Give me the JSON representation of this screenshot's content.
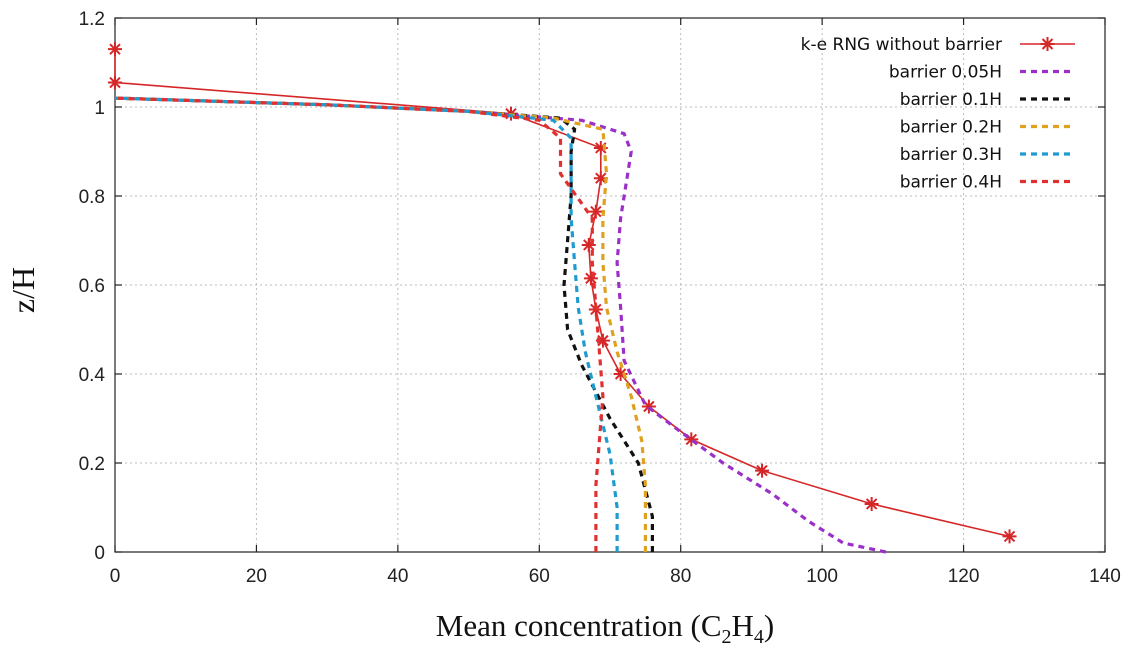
{
  "chart_data": {
    "type": "line",
    "title": "",
    "xlabel": "Mean concentration (C2H4)",
    "xlabel_parts": {
      "pre": "Mean concentration (C",
      "sub1": "2",
      "mid": "H",
      "sub2": "4",
      "post": ")"
    },
    "ylabel": "z/H",
    "xlim": [
      0,
      140
    ],
    "ylim": [
      0,
      1.2
    ],
    "xticks": [
      0,
      20,
      40,
      60,
      80,
      100,
      120,
      140
    ],
    "yticks": [
      0,
      0.2,
      0.4,
      0.6,
      0.8,
      1,
      1.2
    ],
    "xtick_labels": [
      "0",
      "20",
      "40",
      "60",
      "80",
      "100",
      "120",
      "140"
    ],
    "ytick_labels": [
      "0",
      "0.2",
      "0.4",
      "0.6",
      "0.8",
      "1",
      "1.2"
    ],
    "grid": true,
    "legend_position": "top-right",
    "series": [
      {
        "name": "k-e RNG without barrier",
        "color": "#d62728",
        "style": "solid-star",
        "points": [
          [
            126.5,
            0.035
          ],
          [
            107,
            0.108
          ],
          [
            91.5,
            0.183
          ],
          [
            81.5,
            0.253
          ],
          [
            75.5,
            0.327
          ],
          [
            71.5,
            0.4
          ],
          [
            69,
            0.475
          ],
          [
            68,
            0.545
          ],
          [
            67.3,
            0.615
          ],
          [
            67,
            0.69
          ],
          [
            68,
            0.765
          ],
          [
            68.7,
            0.84
          ],
          [
            68.7,
            0.908
          ],
          [
            56,
            0.985
          ],
          [
            0,
            1.055
          ],
          [
            0,
            1.13
          ]
        ]
      },
      {
        "name": "barrier 0.05H",
        "color": "#9a30c8",
        "style": "dashed",
        "points": [
          [
            109,
            0
          ],
          [
            103,
            0.02
          ],
          [
            98,
            0.07
          ],
          [
            93,
            0.13
          ],
          [
            86,
            0.2
          ],
          [
            80,
            0.27
          ],
          [
            75,
            0.33
          ],
          [
            72,
            0.43
          ],
          [
            71.5,
            0.55
          ],
          [
            71,
            0.65
          ],
          [
            71.5,
            0.75
          ],
          [
            72.5,
            0.85
          ],
          [
            73,
            0.9
          ],
          [
            72,
            0.94
          ],
          [
            66,
            0.97
          ],
          [
            50,
            0.99
          ],
          [
            30,
            1.005
          ],
          [
            0,
            1.02
          ]
        ]
      },
      {
        "name": "barrier 0.1H",
        "color": "#111111",
        "style": "dashed",
        "points": [
          [
            76,
            0
          ],
          [
            76,
            0.08
          ],
          [
            74,
            0.2
          ],
          [
            70,
            0.3
          ],
          [
            66,
            0.42
          ],
          [
            64,
            0.5
          ],
          [
            63.5,
            0.6
          ],
          [
            64,
            0.7
          ],
          [
            64.5,
            0.8
          ],
          [
            64.5,
            0.9
          ],
          [
            65,
            0.95
          ],
          [
            63,
            0.975
          ],
          [
            50,
            0.99
          ],
          [
            30,
            1.005
          ],
          [
            0,
            1.02
          ]
        ]
      },
      {
        "name": "barrier 0.2H",
        "color": "#e0a020",
        "style": "dashed",
        "points": [
          [
            75,
            0
          ],
          [
            75,
            0.15
          ],
          [
            74.5,
            0.25
          ],
          [
            73,
            0.35
          ],
          [
            71,
            0.45
          ],
          [
            69.5,
            0.55
          ],
          [
            69,
            0.65
          ],
          [
            69,
            0.75
          ],
          [
            69.5,
            0.85
          ],
          [
            69,
            0.95
          ],
          [
            62,
            0.975
          ],
          [
            50,
            0.99
          ],
          [
            30,
            1.005
          ],
          [
            0,
            1.02
          ]
        ]
      },
      {
        "name": "barrier 0.3H",
        "color": "#1f9bd0",
        "style": "dashed",
        "points": [
          [
            71,
            0
          ],
          [
            71,
            0.1
          ],
          [
            70,
            0.22
          ],
          [
            68,
            0.35
          ],
          [
            66.5,
            0.45
          ],
          [
            65.5,
            0.55
          ],
          [
            65,
            0.65
          ],
          [
            64.5,
            0.75
          ],
          [
            64.5,
            0.85
          ],
          [
            64.5,
            0.93
          ],
          [
            62,
            0.97
          ],
          [
            50,
            0.99
          ],
          [
            30,
            1.005
          ],
          [
            0,
            1.02
          ]
        ]
      },
      {
        "name": "barrier 0.4H",
        "color": "#e03030",
        "style": "dashed",
        "points": [
          [
            68,
            0
          ],
          [
            68,
            0.15
          ],
          [
            68.5,
            0.25
          ],
          [
            69,
            0.35
          ],
          [
            68.5,
            0.45
          ],
          [
            68,
            0.55
          ],
          [
            67.5,
            0.65
          ],
          [
            67.5,
            0.75
          ],
          [
            63,
            0.85
          ],
          [
            63,
            0.93
          ],
          [
            60,
            0.97
          ],
          [
            50,
            0.99
          ],
          [
            30,
            1.005
          ],
          [
            0,
            1.02
          ]
        ]
      }
    ]
  }
}
